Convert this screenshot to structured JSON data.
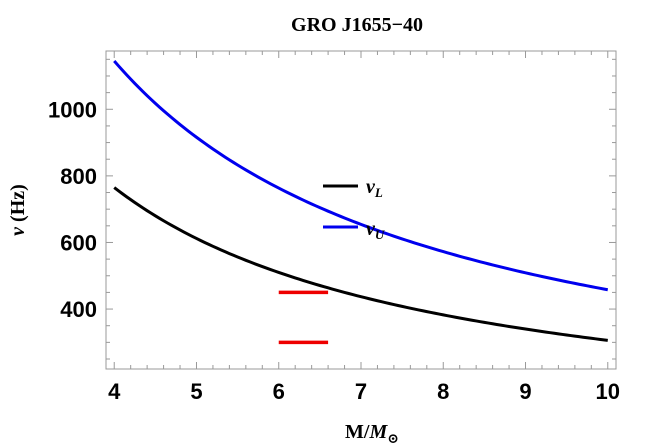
{
  "chart_data": {
    "type": "line",
    "title": "GRO J1655−40",
    "xlabel": "M/M⊙",
    "ylabel": "ν (Hz)",
    "xlim": [
      3.9,
      10.1
    ],
    "ylim": [
      220,
      1175
    ],
    "x_ticks": [
      4,
      5,
      6,
      7,
      8,
      9,
      10
    ],
    "x_tick_labels": [
      "4",
      "5",
      "6",
      "7",
      "8",
      "9",
      "10"
    ],
    "y_ticks": [
      400,
      600,
      800,
      1000
    ],
    "y_tick_labels": [
      "400",
      "600",
      "800",
      "1000"
    ],
    "grid": false,
    "legend_position": "center",
    "series": [
      {
        "name": "νL",
        "color": "#000000",
        "x": [
          4,
          5,
          6,
          7,
          8,
          9,
          10
        ],
        "values": [
          765,
          612,
          510,
          437,
          383,
          340,
          306
        ]
      },
      {
        "name": "νU",
        "color": "#0000ee",
        "x": [
          4,
          5,
          6,
          7,
          8,
          9,
          10
        ],
        "values": [
          1145,
          916,
          763,
          654,
          572,
          509,
          458
        ]
      }
    ],
    "observations": [
      {
        "x_range": [
          6.0,
          6.6
        ],
        "y": 450,
        "color": "#ee0000"
      },
      {
        "x_range": [
          6.0,
          6.6
        ],
        "y": 300,
        "color": "#ee0000"
      }
    ]
  }
}
